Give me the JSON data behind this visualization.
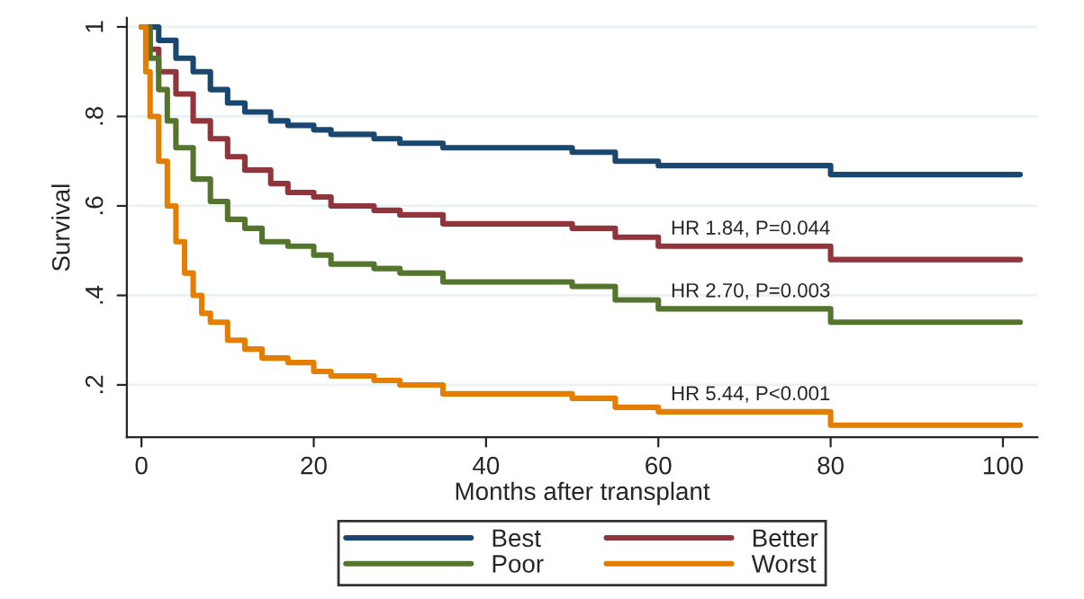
{
  "chart_data": {
    "type": "step",
    "xlabel": "Months after transplant",
    "ylabel": "Survival",
    "xlim": [
      -1.7,
      104
    ],
    "ylim": [
      0.083,
      1.02
    ],
    "xticks": [
      0,
      20,
      40,
      60,
      80,
      100
    ],
    "yticks": [
      {
        "value": 0.2,
        "label": ".2"
      },
      {
        "value": 0.4,
        "label": ".4"
      },
      {
        "value": 0.6,
        "label": ".6"
      },
      {
        "value": 0.8,
        "label": ".8"
      },
      1
    ],
    "grid": "y",
    "legend": "bottom",
    "line_style": "solid",
    "marker": "none",
    "series": [
      {
        "name": "Best",
        "color": "#1a476f",
        "x": [
          0,
          2,
          4,
          6,
          8,
          10,
          12,
          15,
          17,
          20,
          22,
          27,
          30,
          35,
          50,
          55,
          60,
          80,
          102
        ],
        "values": [
          1,
          0.97,
          0.93,
          0.9,
          0.86,
          0.83,
          0.81,
          0.79,
          0.78,
          0.77,
          0.76,
          0.75,
          0.74,
          0.73,
          0.72,
          0.7,
          0.69,
          0.67,
          0.67
        ]
      },
      {
        "name": "Better",
        "color": "#90353b",
        "x": [
          0,
          1,
          2,
          4,
          6,
          8,
          10,
          12,
          15,
          17,
          20,
          22,
          27,
          30,
          35,
          50,
          55,
          60,
          80,
          102
        ],
        "values": [
          1,
          0.95,
          0.9,
          0.85,
          0.79,
          0.75,
          0.71,
          0.68,
          0.65,
          0.63,
          0.62,
          0.6,
          0.59,
          0.58,
          0.56,
          0.55,
          0.53,
          0.51,
          0.48,
          0.48
        ]
      },
      {
        "name": "Poor",
        "color": "#55752f",
        "x": [
          0,
          1,
          2,
          3,
          4,
          6,
          8,
          10,
          12,
          14,
          17,
          20,
          22,
          27,
          30,
          35,
          50,
          55,
          60,
          80,
          102
        ],
        "values": [
          1,
          0.93,
          0.86,
          0.79,
          0.73,
          0.66,
          0.61,
          0.57,
          0.55,
          0.52,
          0.51,
          0.49,
          0.47,
          0.46,
          0.45,
          0.43,
          0.42,
          0.39,
          0.37,
          0.34,
          0.34
        ]
      },
      {
        "name": "Worst",
        "color": "#e37e00",
        "x": [
          0,
          0.5,
          1,
          2,
          3,
          4,
          5,
          6,
          7,
          8,
          10,
          12,
          14,
          17,
          20,
          22,
          27,
          30,
          35,
          50,
          55,
          60,
          80,
          102
        ],
        "values": [
          1,
          0.9,
          0.8,
          0.7,
          0.6,
          0.52,
          0.45,
          0.4,
          0.36,
          0.34,
          0.3,
          0.28,
          0.26,
          0.25,
          0.23,
          0.22,
          0.21,
          0.2,
          0.18,
          0.17,
          0.15,
          0.14,
          0.11,
          0.11
        ]
      }
    ],
    "annotations": [
      "HR 1.84, P=0.044",
      "HR 2.70, P=0.003",
      "HR 5.44, P<0.001"
    ]
  }
}
